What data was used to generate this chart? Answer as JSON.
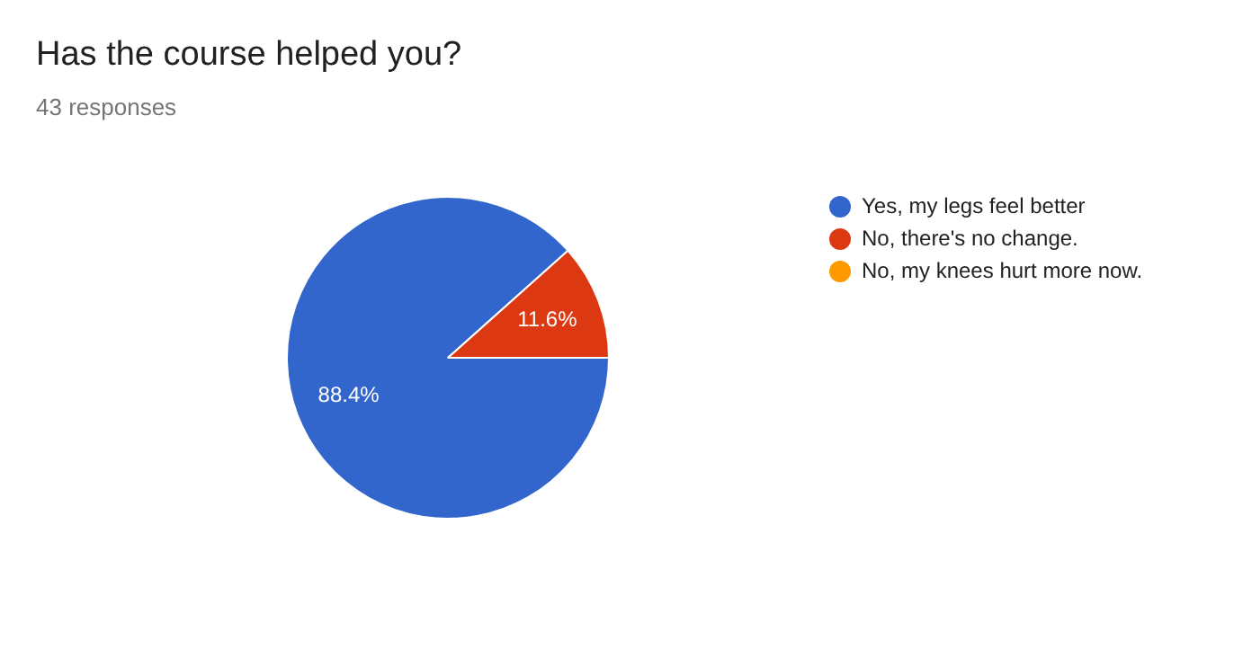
{
  "chart_data": {
    "type": "pie",
    "title": "Has the course helped you?",
    "subtitle": "43 responses",
    "categories": [
      "Yes, my legs feel better",
      "No, there's no change.",
      "No, my knees hurt more now."
    ],
    "values": [
      88.4,
      11.6,
      0
    ],
    "colors": [
      "#3366cc",
      "#dc3912",
      "#ff9900"
    ],
    "value_labels": [
      "88.4%",
      "11.6%",
      null
    ],
    "legend": "right"
  }
}
